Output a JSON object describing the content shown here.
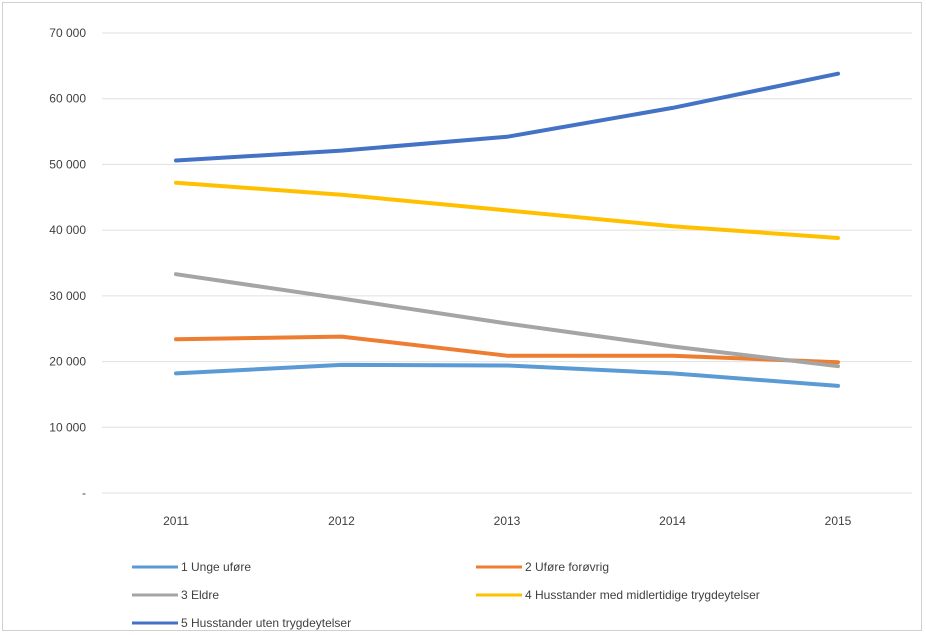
{
  "chart_data": {
    "type": "line",
    "title": "",
    "xlabel": "",
    "ylabel": "",
    "categories": [
      "2011",
      "2012",
      "2013",
      "2014",
      "2015"
    ],
    "ylim": [
      0,
      70000
    ],
    "yticks": [
      {
        "value": 0,
        "label": "-"
      },
      {
        "value": 10000,
        "label": "10 000"
      },
      {
        "value": 20000,
        "label": "20 000"
      },
      {
        "value": 30000,
        "label": "30 000"
      },
      {
        "value": 40000,
        "label": "40 000"
      },
      {
        "value": 50000,
        "label": "50 000"
      },
      {
        "value": 60000,
        "label": "60 000"
      },
      {
        "value": 70000,
        "label": "70 000"
      }
    ],
    "grid": true,
    "legend_position": "bottom",
    "series": [
      {
        "name": "1 Unge uføre",
        "color": "#5b9bd5",
        "values": [
          18200,
          19500,
          19400,
          18200,
          16300
        ]
      },
      {
        "name": "2 Uføre forøvrig",
        "color": "#ed7d31",
        "values": [
          23400,
          23800,
          20900,
          20900,
          19900
        ]
      },
      {
        "name": "3 Eldre",
        "color": "#a5a5a5",
        "values": [
          33300,
          29600,
          25800,
          22300,
          19300
        ]
      },
      {
        "name": "4 Husstander med midlertidige trygdeytelser",
        "color": "#ffc000",
        "values": [
          47200,
          45400,
          43000,
          40600,
          38800
        ]
      },
      {
        "name": "5 Husstander uten trygdeytelser",
        "color": "#4472c4",
        "values": [
          50600,
          52100,
          54200,
          58600,
          63800
        ]
      }
    ]
  }
}
